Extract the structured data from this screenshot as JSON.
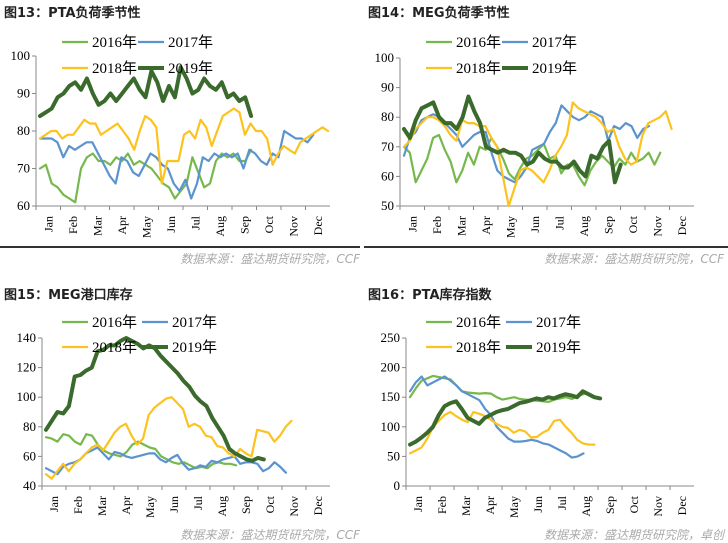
{
  "source_text": "数据来源：盛达期货研究院，CCF",
  "source_text_alt": "数据来源：盛达期货研究院，卓创",
  "colors": {
    "2016": "#77b84d",
    "2017": "#5b93cf",
    "2018": "#fcc21e",
    "2019": "#3b6a2d"
  },
  "chart_data": [
    {
      "title": "图13：PTA负荷季节性",
      "type": "line",
      "ylim": [
        60,
        100
      ],
      "yticks": [
        60,
        70,
        80,
        90,
        100
      ],
      "xticks": [
        "Jan",
        "Feb",
        "Mar",
        "Apr",
        "May",
        "Jun",
        "Jul",
        "Aug",
        "Sep",
        "Oct",
        "Nov",
        "Dec"
      ],
      "source": "数据来源：盛达期货研究院，CCF",
      "series": [
        {
          "name": "2016年",
          "values": [
            70,
            71,
            66,
            65,
            63,
            62,
            61,
            70,
            73,
            74,
            72,
            72,
            71,
            73,
            72,
            74,
            71,
            72,
            71,
            70,
            68,
            66,
            65,
            62,
            64,
            66,
            73,
            69,
            65,
            66,
            72,
            74,
            73,
            74,
            72,
            72,
            75
          ]
        },
        {
          "name": "2017年",
          "values": [
            78,
            78,
            78,
            77,
            73,
            76,
            75,
            76,
            77,
            77,
            74,
            71,
            68,
            66,
            73,
            72,
            69,
            68,
            71,
            74,
            73,
            71,
            70,
            66,
            64,
            67,
            62,
            66,
            73,
            72,
            74,
            73,
            74,
            73,
            74,
            70,
            75,
            74,
            72,
            71,
            74,
            73,
            80,
            79,
            78,
            78,
            77,
            79
          ]
        },
        {
          "name": "2018年",
          "values": [
            78,
            79,
            80,
            80,
            78,
            79,
            79,
            81,
            83,
            82,
            82,
            79,
            80,
            81,
            82,
            80,
            78,
            75,
            80,
            84,
            83,
            81,
            66,
            72,
            72,
            72,
            79,
            80,
            78,
            83,
            81,
            76,
            80,
            84,
            85,
            86,
            85,
            79,
            82,
            80,
            80,
            78,
            71,
            74,
            76,
            75,
            74,
            77,
            78,
            79,
            80,
            81,
            80
          ]
        },
        {
          "name": "2019年",
          "values": [
            84,
            85,
            86,
            89,
            90,
            92,
            93,
            91,
            94,
            90,
            87,
            88,
            90,
            88,
            90,
            92,
            94,
            91,
            89,
            96,
            93,
            88,
            92,
            89,
            97,
            94,
            90,
            91,
            94,
            92,
            91,
            93,
            89,
            90,
            88,
            89,
            84
          ]
        }
      ]
    },
    {
      "title": "图14：MEG负荷季节性",
      "type": "line",
      "ylim": [
        50,
        100
      ],
      "yticks": [
        50,
        60,
        70,
        80,
        90,
        100
      ],
      "xticks": [
        "Jan",
        "Feb",
        "Mar",
        "Apr",
        "May",
        "Jun",
        "Jul",
        "Aug",
        "Sep",
        "Oct",
        "Nov",
        "Dec"
      ],
      "source": "数据来源：盛达期货研究院，CCF",
      "series": [
        {
          "name": "2016年",
          "values": [
            70,
            68,
            58,
            62,
            66,
            73,
            74,
            69,
            65,
            58,
            62,
            68,
            64,
            70,
            69,
            73,
            70,
            66,
            61,
            59,
            63,
            66,
            67,
            69,
            71,
            66,
            67,
            61,
            64,
            64,
            60,
            57,
            62,
            65,
            67,
            65,
            63,
            66,
            64,
            68,
            65,
            66,
            68,
            64,
            68
          ]
        },
        {
          "name": "2017年",
          "values": [
            67,
            73,
            75,
            79,
            80,
            81,
            80,
            78,
            76,
            74,
            70,
            72,
            74,
            75,
            75,
            68,
            62,
            60,
            59,
            58,
            60,
            63,
            69,
            70,
            71,
            75,
            78,
            84,
            82,
            80,
            79,
            80,
            82,
            81,
            80,
            72,
            77,
            76,
            78,
            77,
            73,
            76,
            77
          ]
        },
        {
          "name": "2018年",
          "values": [
            70,
            72,
            76,
            78,
            80,
            80,
            79,
            77,
            74,
            72,
            79,
            78,
            78,
            77,
            77,
            73,
            70,
            60,
            50,
            56,
            62,
            63,
            62,
            60,
            58,
            62,
            67,
            70,
            74,
            85,
            83,
            82,
            81,
            80,
            78,
            75,
            76,
            70,
            66,
            64,
            65,
            74,
            78,
            79,
            80,
            82,
            76
          ]
        },
        {
          "name": "2019年",
          "values": [
            76,
            73,
            79,
            83,
            84,
            85,
            80,
            78,
            78,
            76,
            80,
            87,
            82,
            78,
            70,
            69,
            68,
            69,
            68,
            68,
            67,
            64,
            65,
            68,
            66,
            65,
            65,
            63,
            63,
            65,
            62,
            60,
            67,
            66,
            70,
            72,
            58,
            64
          ]
        }
      ]
    },
    {
      "title": "图15：MEG港口库存",
      "type": "line",
      "ylim": [
        40,
        140
      ],
      "yticks": [
        40,
        60,
        80,
        100,
        120,
        140
      ],
      "xticks": [
        "Jan",
        "Feb",
        "Mar",
        "Apr",
        "May",
        "Jun",
        "Jul",
        "Aug",
        "Sep",
        "Oct",
        "Nov",
        "Dec"
      ],
      "source": "数据来源：盛达期货研究院，CCF",
      "series": [
        {
          "name": "2016年",
          "values": [
            73,
            72,
            70,
            75,
            74,
            70,
            68,
            75,
            74,
            68,
            64,
            62,
            61,
            60,
            63,
            68,
            70,
            68,
            66,
            65,
            60,
            58,
            56,
            55,
            56,
            54,
            52,
            53,
            52,
            55,
            56,
            55,
            55,
            54
          ]
        },
        {
          "name": "2017年",
          "values": [
            52,
            50,
            48,
            53,
            55,
            56,
            58,
            62,
            64,
            66,
            62,
            58,
            63,
            62,
            60,
            59,
            60,
            61,
            62,
            62,
            58,
            56,
            59,
            61,
            55,
            51,
            52,
            54,
            53,
            57,
            56,
            58,
            59,
            60,
            55,
            56,
            56,
            55,
            50,
            52,
            56,
            53,
            49
          ]
        },
        {
          "name": "2018年",
          "values": [
            48,
            45,
            50,
            55,
            50,
            55,
            58,
            62,
            66,
            68,
            64,
            70,
            76,
            80,
            82,
            74,
            68,
            72,
            88,
            93,
            96,
            99,
            100,
            96,
            92,
            80,
            82,
            80,
            74,
            73,
            67,
            66,
            62,
            60,
            65,
            62,
            60,
            78,
            77,
            76,
            70,
            74,
            80,
            84
          ]
        },
        {
          "name": "2019年",
          "values": [
            78,
            84,
            90,
            89,
            94,
            114,
            115,
            118,
            120,
            131,
            132,
            135,
            135,
            138,
            140,
            138,
            136,
            133,
            135,
            133,
            128,
            124,
            120,
            116,
            111,
            107,
            101,
            97,
            94,
            86,
            80,
            74,
            65,
            62,
            60,
            58,
            57,
            59,
            58
          ]
        }
      ]
    },
    {
      "title": "图16：PTA库存指数",
      "type": "line",
      "ylim": [
        0,
        250
      ],
      "yticks": [
        0,
        50,
        100,
        150,
        200,
        250
      ],
      "xticks": [
        "Jan",
        "Feb",
        "Mar",
        "Apr",
        "May",
        "Jun",
        "Jul",
        "Aug",
        "Sep",
        "Oct",
        "Nov",
        "Dec"
      ],
      "source": "数据来源：盛达期货研究院，卓创",
      "series": [
        {
          "name": "2016年",
          "values": [
            150,
            165,
            178,
            182,
            186,
            184,
            182,
            180,
            170,
            160,
            158,
            157,
            156,
            157,
            156,
            150,
            146,
            148,
            150,
            147,
            146,
            145,
            144,
            143,
            142,
            146,
            148,
            150,
            147,
            152,
            155
          ]
        },
        {
          "name": "2017年",
          "values": [
            160,
            175,
            185,
            170,
            175,
            180,
            185,
            178,
            170,
            160,
            155,
            150,
            145,
            130,
            120,
            100,
            90,
            80,
            75,
            75,
            76,
            78,
            76,
            72,
            70,
            65,
            60,
            55,
            48,
            50,
            55
          ]
        },
        {
          "name": "2018年",
          "values": [
            55,
            60,
            65,
            80,
            100,
            110,
            120,
            125,
            118,
            112,
            108,
            125,
            122,
            118,
            112,
            105,
            100,
            98,
            90,
            95,
            92,
            82,
            83,
            90,
            95,
            110,
            112,
            100,
            90,
            78,
            72,
            70,
            70
          ]
        },
        {
          "name": "2019年",
          "values": [
            70,
            75,
            82,
            90,
            100,
            120,
            135,
            140,
            143,
            130,
            115,
            110,
            105,
            115,
            120,
            125,
            128,
            130,
            135,
            140,
            142,
            145,
            148,
            146,
            150,
            148,
            152,
            155,
            153,
            150,
            160,
            155,
            150,
            148
          ]
        }
      ]
    }
  ]
}
